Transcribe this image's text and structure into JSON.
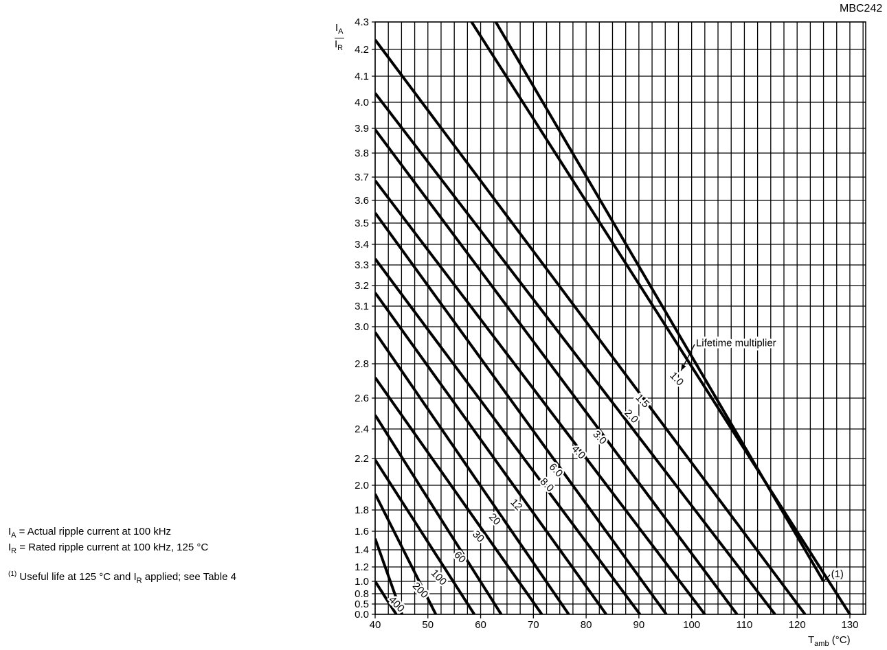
{
  "figure_id": "MBC242",
  "notes": {
    "ia_symbol": "I",
    "ia_sub": "A",
    "ia_text": " = Actual ripple current at 100 kHz",
    "ir_symbol": "I",
    "ir_sub": "R",
    "ir_text": " = Rated ripple current at 100 kHz, 125 °C",
    "footnote_mark": "(1)",
    "footnote_text_a": " Useful life at 125 °C and I",
    "footnote_sub": "R",
    "footnote_text_b": " applied; see Table 4"
  },
  "chart_data": {
    "type": "line",
    "xlabel": {
      "symbol": "T",
      "sub": "amb",
      "unit": " (°C)"
    },
    "ylabel": {
      "num_symbol": "I",
      "num_sub": "A",
      "den_symbol": "I",
      "den_sub": "R"
    },
    "xlim": [
      40,
      133
    ],
    "x_ticks": [
      40,
      50,
      60,
      70,
      80,
      90,
      100,
      110,
      120,
      130
    ],
    "y_ticks": [
      "0.0",
      "0.5",
      "0.8",
      "1.0",
      "1.2",
      "1.4",
      "1.6",
      "1.8",
      "2.0",
      "2.2",
      "2.4",
      "2.6",
      "2.8",
      "3.0",
      "3.1",
      "3.2",
      "3.3",
      "3.4",
      "3.5",
      "3.6",
      "3.7",
      "3.8",
      "3.9",
      "4.0",
      "4.1",
      "4.2",
      "4.3"
    ],
    "grid": true,
    "annotation": "Lifetime multiplier",
    "footnote_marker": "(1)",
    "series": [
      {
        "name": "1.0",
        "x": [
          40,
          125
        ],
        "y": [
          5.05,
          1.0
        ]
      },
      {
        "name": "1.5",
        "x": [
          40,
          130
        ],
        "y": [
          4.85,
          0.0
        ]
      },
      {
        "name": "2.0",
        "x": [
          40,
          121.5
        ],
        "y": [
          4.235,
          0.0
        ]
      },
      {
        "name": "3.0",
        "x": [
          40,
          115.8
        ],
        "y": [
          4.035,
          0.0
        ]
      },
      {
        "name": "4.0",
        "x": [
          40,
          108.6
        ],
        "y": [
          3.895,
          0.0
        ]
      },
      {
        "name": "6.0",
        "x": [
          40,
          102.5
        ],
        "y": [
          3.685,
          0.0
        ]
      },
      {
        "name": "8.0",
        "x": [
          40,
          95.2
        ],
        "y": [
          3.545,
          0.0
        ]
      },
      {
        "name": "12",
        "x": [
          40,
          90.2
        ],
        "y": [
          3.33,
          0.0
        ]
      },
      {
        "name": "20",
        "x": [
          40,
          83.8
        ],
        "y": [
          3.165,
          0.0
        ]
      },
      {
        "name": "30",
        "x": [
          40,
          76.7
        ],
        "y": [
          2.97,
          0.0
        ]
      },
      {
        "name": "60",
        "x": [
          40,
          71.6
        ],
        "y": [
          2.72,
          0.0
        ]
      },
      {
        "name": "100",
        "x": [
          40,
          63.9
        ],
        "y": [
          2.49,
          0.0
        ]
      },
      {
        "name": "200",
        "x": [
          40,
          58.8
        ],
        "y": [
          2.19,
          0.0
        ]
      },
      {
        "name": "400",
        "x": [
          40,
          51.5
        ],
        "y": [
          1.93,
          0.0
        ]
      },
      {
        "name": "",
        "x": [
          40,
          45.1
        ],
        "y": [
          1.52,
          0.0
        ]
      },
      {
        "name": "",
        "x": [
          40,
          44.0
        ],
        "y": [
          1.0,
          0.0
        ]
      }
    ],
    "line_labels": [
      {
        "text": "1.0",
        "x": 97.1,
        "y": 2.71
      },
      {
        "text": "1.5",
        "x": 90.6,
        "y": 2.58
      },
      {
        "text": "2.0",
        "x": 88.5,
        "y": 2.48
      },
      {
        "text": "3.0",
        "x": 82.5,
        "y": 2.34
      },
      {
        "text": "4.0",
        "x": 78.5,
        "y": 2.24
      },
      {
        "text": "6.0",
        "x": 74.2,
        "y": 2.11
      },
      {
        "text": "8.0",
        "x": 72.5,
        "y": 2.0
      },
      {
        "text": "12",
        "x": 66.7,
        "y": 1.84
      },
      {
        "text": "20",
        "x": 62.6,
        "y": 1.71
      },
      {
        "text": "30",
        "x": 59.5,
        "y": 1.54
      },
      {
        "text": "60",
        "x": 56.0,
        "y": 1.31
      },
      {
        "text": "100",
        "x": 52.0,
        "y": 1.05
      },
      {
        "text": "200",
        "x": 48.5,
        "y": 0.85
      },
      {
        "text": "400",
        "x": 44.0,
        "y": 0.47
      }
    ],
    "arrow_target": {
      "x": 98.0,
      "y": 2.76
    },
    "arrow_label_anchor": {
      "x": 99.0,
      "y": 2.89
    },
    "marker_target": {
      "x": 125.0,
      "y": 1.0
    }
  }
}
